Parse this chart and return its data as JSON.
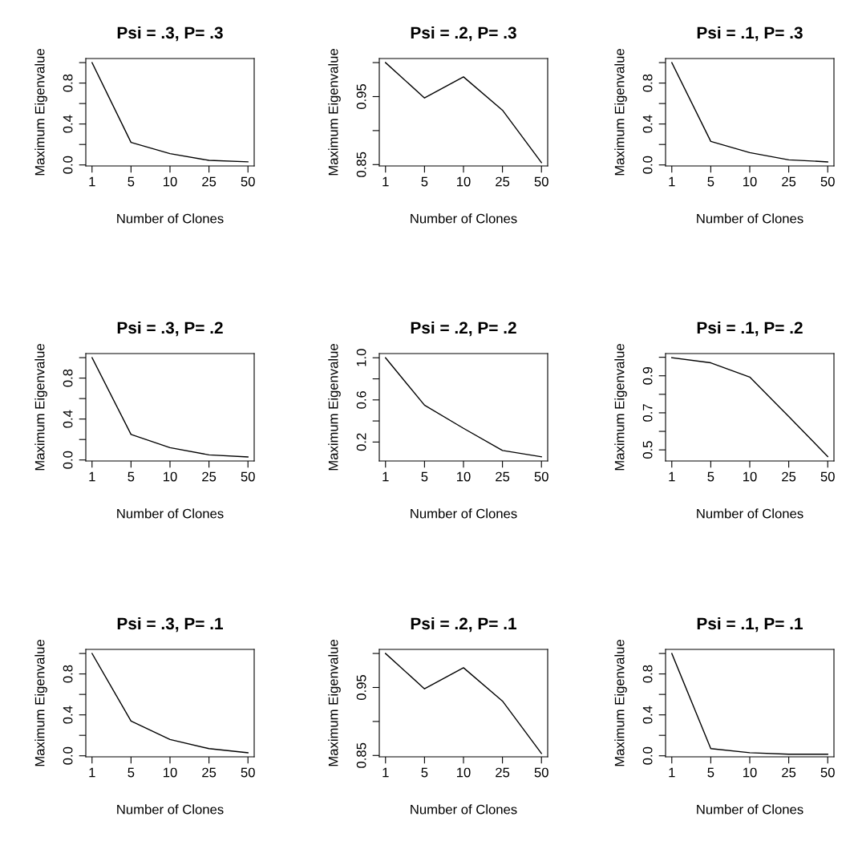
{
  "chart_data": [
    {
      "type": "line",
      "title": "Psi = .3, P= .3",
      "xlabel": "Number of Clones",
      "ylabel": "Maximum Eigenvalue",
      "categories": [
        "1",
        "5",
        "10",
        "25",
        "50"
      ],
      "series": [
        {
          "color": "#000000",
          "values": [
            1.0,
            0.22,
            0.11,
            0.045,
            0.03
          ]
        }
      ],
      "ylim": [
        -0.01,
        1.04
      ],
      "yticks": [
        {
          "value": 0,
          "label": "0.0"
        },
        {
          "value": 0.2,
          "label": null
        },
        0.4,
        {
          "value": 0.6,
          "label": null
        },
        0.8,
        {
          "value": 1.0,
          "label": null
        }
      ],
      "grid": false,
      "legend": false,
      "marker": "none",
      "line_style": "solid"
    },
    {
      "type": "line",
      "title": "Psi = .2, P= .3",
      "xlabel": "Number of Clones",
      "ylabel": "Maximum Eigenvalue",
      "categories": [
        "1",
        "5",
        "10",
        "25",
        "50"
      ],
      "series": [
        {
          "color": "#000000",
          "values": [
            1.0,
            0.948,
            0.979,
            0.93,
            0.853
          ]
        }
      ],
      "ylim": [
        0.848,
        1.006
      ],
      "yticks": [
        0.85,
        {
          "value": 0.9,
          "label": null
        },
        0.95,
        {
          "value": 1.0,
          "label": null
        }
      ],
      "grid": false,
      "legend": false,
      "marker": "none",
      "line_style": "solid"
    },
    {
      "type": "line",
      "title": "Psi = .1, P= .3",
      "xlabel": "Number of Clones",
      "ylabel": "Maximum Eigenvalue",
      "categories": [
        "1",
        "5",
        "10",
        "25",
        "50"
      ],
      "series": [
        {
          "color": "#000000",
          "values": [
            1.0,
            0.23,
            0.12,
            0.05,
            0.03
          ]
        }
      ],
      "ylim": [
        -0.01,
        1.04
      ],
      "yticks": [
        {
          "value": 0,
          "label": "0.0"
        },
        {
          "value": 0.2,
          "label": null
        },
        0.4,
        {
          "value": 0.6,
          "label": null
        },
        0.8,
        {
          "value": 1.0,
          "label": null
        }
      ],
      "grid": false,
      "legend": false,
      "marker": "none",
      "line_style": "solid"
    },
    {
      "type": "line",
      "title": "Psi = .3, P= .2",
      "xlabel": "Number of Clones",
      "ylabel": "Maximum Eigenvalue",
      "categories": [
        "1",
        "5",
        "10",
        "25",
        "50"
      ],
      "series": [
        {
          "color": "#000000",
          "values": [
            1.0,
            0.25,
            0.12,
            0.05,
            0.03
          ]
        }
      ],
      "ylim": [
        -0.01,
        1.04
      ],
      "yticks": [
        {
          "value": 0,
          "label": "0.0"
        },
        {
          "value": 0.2,
          "label": null
        },
        0.4,
        {
          "value": 0.6,
          "label": null
        },
        0.8,
        {
          "value": 1.0,
          "label": null
        }
      ],
      "grid": false,
      "legend": false,
      "marker": "none",
      "line_style": "solid"
    },
    {
      "type": "line",
      "title": "Psi = .2, P= .2",
      "xlabel": "Number of Clones",
      "ylabel": "Maximum Eigenvalue",
      "categories": [
        "1",
        "5",
        "10",
        "25",
        "50"
      ],
      "series": [
        {
          "color": "#000000",
          "values": [
            1.0,
            0.55,
            0.33,
            0.12,
            0.06
          ]
        }
      ],
      "ylim": [
        0.02,
        1.04
      ],
      "yticks": [
        0.2,
        {
          "value": 0.4,
          "label": null
        },
        0.6,
        {
          "value": 0.8,
          "label": null
        },
        {
          "value": 1.0,
          "label": "1.0"
        }
      ],
      "grid": false,
      "legend": false,
      "marker": "none",
      "line_style": "solid"
    },
    {
      "type": "line",
      "title": "Psi = .1, P= .2",
      "xlabel": "Number of Clones",
      "ylabel": "Maximum Eigenvalue",
      "categories": [
        "1",
        "5",
        "10",
        "25",
        "50"
      ],
      "series": [
        {
          "color": "#000000",
          "values": [
            0.998,
            0.97,
            0.893,
            0.68,
            0.464
          ]
        }
      ],
      "ylim": [
        0.44,
        1.02
      ],
      "yticks": [
        0.5,
        {
          "value": 0.6,
          "label": null
        },
        0.7,
        {
          "value": 0.8,
          "label": null
        },
        0.9,
        {
          "value": 1.0,
          "label": null
        }
      ],
      "grid": false,
      "legend": false,
      "marker": "none",
      "line_style": "solid"
    },
    {
      "type": "line",
      "title": "Psi = .3, P= .1",
      "xlabel": "Number of Clones",
      "ylabel": "Maximum Eigenvalue",
      "categories": [
        "1",
        "5",
        "10",
        "25",
        "50"
      ],
      "series": [
        {
          "color": "#000000",
          "values": [
            1.0,
            0.34,
            0.16,
            0.07,
            0.03
          ]
        }
      ],
      "ylim": [
        -0.01,
        1.04
      ],
      "yticks": [
        {
          "value": 0,
          "label": "0.0"
        },
        {
          "value": 0.2,
          "label": null
        },
        0.4,
        {
          "value": 0.6,
          "label": null
        },
        0.8,
        {
          "value": 1.0,
          "label": null
        }
      ],
      "grid": false,
      "legend": false,
      "marker": "none",
      "line_style": "solid"
    },
    {
      "type": "line",
      "title": "Psi = .2, P= .1",
      "xlabel": "Number of Clones",
      "ylabel": "Maximum Eigenvalue",
      "categories": [
        "1",
        "5",
        "10",
        "25",
        "50"
      ],
      "series": [
        {
          "color": "#000000",
          "values": [
            1.0,
            0.948,
            0.979,
            0.93,
            0.853
          ]
        }
      ],
      "ylim": [
        0.848,
        1.006
      ],
      "yticks": [
        0.85,
        {
          "value": 0.9,
          "label": null
        },
        0.95,
        {
          "value": 1.0,
          "label": null
        }
      ],
      "grid": false,
      "legend": false,
      "marker": "none",
      "line_style": "solid"
    },
    {
      "type": "line",
      "title": "Psi = .1, P= .1",
      "xlabel": "Number of Clones",
      "ylabel": "Maximum Eigenvalue",
      "categories": [
        "1",
        "5",
        "10",
        "25",
        "50"
      ],
      "series": [
        {
          "color": "#000000",
          "values": [
            1.0,
            0.07,
            0.03,
            0.015,
            0.015
          ]
        }
      ],
      "ylim": [
        -0.01,
        1.04
      ],
      "yticks": [
        {
          "value": 0,
          "label": "0.0"
        },
        {
          "value": 0.2,
          "label": null
        },
        0.4,
        {
          "value": 0.6,
          "label": null
        },
        0.8,
        {
          "value": 1.0,
          "label": null
        }
      ],
      "grid": false,
      "legend": false,
      "marker": "none",
      "line_style": "solid"
    }
  ]
}
